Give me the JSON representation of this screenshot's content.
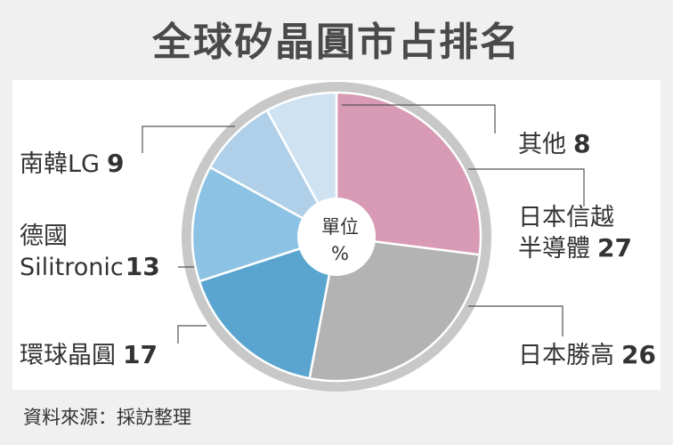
{
  "chart_data": {
    "type": "pie",
    "title": "全球矽晶圓市占排名",
    "center_label": [
      "單位",
      "%"
    ],
    "slices": [
      {
        "name_lines": [
          "日本信越",
          "半導體"
        ],
        "value": 27,
        "color": "#d89ab4"
      },
      {
        "name_lines": [
          "日本勝高"
        ],
        "value": 26,
        "color": "#b3b3b3"
      },
      {
        "name_lines": [
          "環球晶圓"
        ],
        "value": 17,
        "color": "#5aa5cf"
      },
      {
        "name_lines": [
          "德國",
          "Silitronic"
        ],
        "value": 13,
        "color": "#8cc2e3"
      },
      {
        "name_lines": [
          "南韓LG"
        ],
        "value": 9,
        "color": "#b0cfe8"
      },
      {
        "name_lines": [
          "其他"
        ],
        "value": 8,
        "color": "#cfe2f1"
      }
    ]
  },
  "source": "資料來源：採訪整理"
}
